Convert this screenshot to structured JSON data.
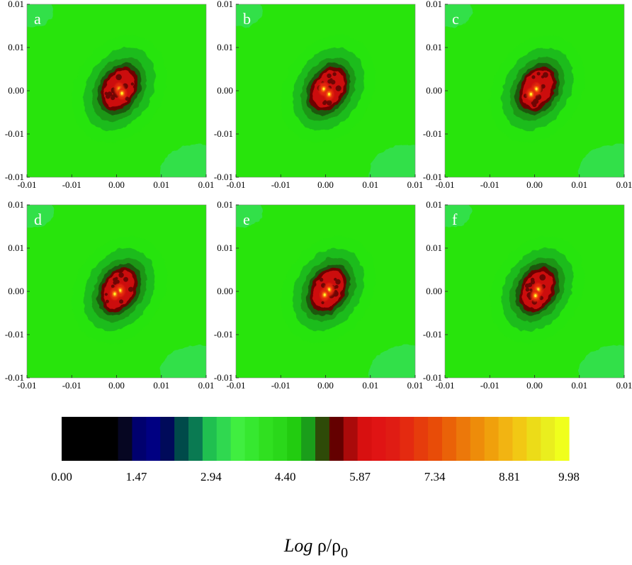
{
  "chart_data": {
    "type": "heatmap",
    "panels": [
      {
        "label": "a",
        "blobs": [
          [
            0.0003,
            0.0002,
            1.0
          ],
          [
            0.0006,
            -0.0003,
            0.95
          ]
        ]
      },
      {
        "label": "b",
        "blobs": [
          [
            -0.0002,
            0.0002,
            1.05
          ],
          [
            0.0004,
            -0.0004,
            0.95
          ]
        ]
      },
      {
        "label": "c",
        "blobs": [
          [
            0.0002,
            0.0002,
            1.0
          ],
          [
            -0.0004,
            -0.0004,
            0.95
          ]
        ]
      },
      {
        "label": "d",
        "blobs": [
          [
            0.0004,
            0.0001,
            1.0
          ],
          [
            -0.0002,
            -0.0003,
            0.95
          ]
        ]
      },
      {
        "label": "e",
        "blobs": [
          [
            0.0004,
            0.0002,
            1.02
          ],
          [
            -0.0001,
            -0.0004,
            0.95
          ]
        ]
      },
      {
        "label": "f",
        "blobs": [
          [
            0.0004,
            0.0002,
            1.0
          ],
          [
            0.0001,
            -0.0005,
            0.95
          ]
        ]
      }
    ],
    "x_ticks": [
      "-0.01",
      "-0.01",
      "0.00",
      "0.01",
      "0.01"
    ],
    "y_ticks": [
      "0.01",
      "0.01",
      "0.00",
      "-0.01",
      "-0.01"
    ],
    "xlim": [
      -0.01,
      0.01
    ],
    "ylim": [
      -0.01,
      0.01
    ],
    "colorbar": {
      "ticks": [
        "0.00",
        "1.47",
        "2.94",
        "4.40",
        "5.87",
        "7.34",
        "8.81",
        "9.98"
      ],
      "range": [
        0,
        9.98
      ],
      "colors": [
        "#000000",
        "#000000",
        "#000000",
        "#000000",
        "#060622",
        "#00006e",
        "#000082",
        "#000a5a",
        "#004a4a",
        "#0a7a52",
        "#20c050",
        "#30d850",
        "#40ee40",
        "#36e830",
        "#30e020",
        "#2ad81a",
        "#22cc10",
        "#1a9e1a",
        "#2e4a08",
        "#640000",
        "#aa0a0a",
        "#d81010",
        "#e01414",
        "#e01c14",
        "#e42a10",
        "#e63c0c",
        "#e84c08",
        "#ea6208",
        "#ec780a",
        "#ee8c0a",
        "#f0a00c",
        "#f2b412",
        "#f2c814",
        "#ecdc18",
        "#eaee1e",
        "#f0ff1c"
      ]
    },
    "colorbar_label": {
      "prefix": "Log",
      "main": "ρ/ρ",
      "sub": "0"
    }
  },
  "colors": {
    "background": "#28e40c",
    "corner": "#33e04a",
    "ring1": "#1cbc1a",
    "ring2": "#1a9616",
    "ring3": "#1f5810",
    "core_dark": "#6e0604",
    "core_red": "#cc0d0d",
    "core_bright": "#e42810",
    "hot": "#ff9a10",
    "hottest": "#fff02a"
  }
}
